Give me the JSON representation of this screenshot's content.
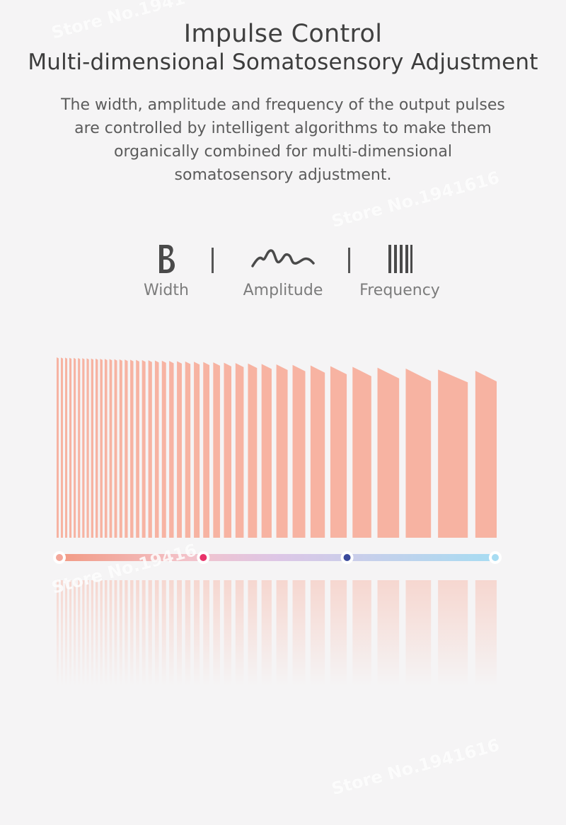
{
  "header": {
    "title": "Impulse Control",
    "subtitle": "Multi-dimensional Somatosensory Adjustment"
  },
  "description": {
    "lines": [
      "The width, amplitude and frequency of the output pulses",
      "are controlled by intelligent algorithms to make them",
      "organically combined for multi-dimensional",
      "somatosensory adjustment."
    ]
  },
  "parameters": [
    {
      "label": "Width",
      "icon": "letter-b-icon"
    },
    {
      "label": "Amplitude",
      "icon": "wave-icon"
    },
    {
      "label": "Frequency",
      "icon": "bars-icon"
    }
  ],
  "watermarks": [
    "Store No.1941",
    "Store No.1941616",
    "Store No.19416",
    "Store No.1941616"
  ],
  "colors": {
    "pulse": "#f7b3a2",
    "slider_start": "#f29a84",
    "slider_mid": "#ddc6e6",
    "slider_end": "#a7dcf2",
    "knob_pink": "#e8336a",
    "knob_blue": "#3a4a9c",
    "knob_light": "#a7dcf2"
  },
  "slider": {
    "stops": [
      0,
      0.33,
      0.66,
      1
    ],
    "knob_colors": [
      "#f3a79a",
      "#e8336a",
      "#3a4a9c",
      "#a7dcf2"
    ]
  }
}
